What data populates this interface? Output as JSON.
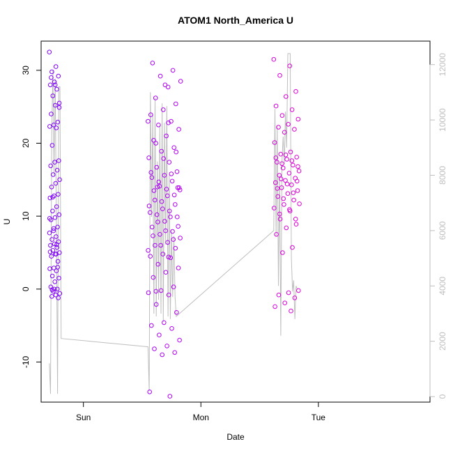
{
  "chart_data": {
    "type": "scatter",
    "title": "ATOM1 North_America U",
    "xlabel": "Date",
    "ylabel": "U",
    "x_ticks": [
      {
        "label": "Sun",
        "day": 1.0
      },
      {
        "label": "Mon",
        "day": 2.0
      },
      {
        "label": "Tue",
        "day": 3.0
      }
    ],
    "xlim_days": [
      0.64,
      3.95
    ],
    "y_ticks": [
      -10,
      0,
      10,
      20,
      30
    ],
    "ylim": [
      -15.5,
      34.0
    ],
    "y2_ticks": [
      0,
      2000,
      4000,
      6000,
      8000,
      10000,
      12000
    ],
    "y2lim": [
      -200,
      12850
    ],
    "grid": false,
    "legend": "none",
    "colors": {
      "early": "#7a00ff",
      "mid": "#cc00ee",
      "late": "#ff0099",
      "secondary_line": "#bebebe"
    },
    "series": [
      {
        "kind": "points",
        "day_range": [
          0.71,
          0.8
        ],
        "values": [
          32.5,
          30.5,
          29.8,
          29.2,
          28.4,
          28.0,
          27.4,
          26.5,
          25.5,
          25.2,
          24.0,
          22.9,
          22.5,
          22.3,
          22.1,
          19.7,
          17.6,
          17.4,
          16.9,
          16.3,
          15.7,
          15.0,
          14.5,
          14.0,
          13.0,
          12.8,
          12.5,
          11.3,
          10.7,
          10.2,
          9.8,
          9.5,
          8.5,
          8.0,
          7.7,
          7.2,
          6.8,
          6.5,
          6.2,
          6.0,
          5.7,
          5.3,
          5.0,
          4.8,
          4.5,
          3.8,
          2.9,
          2.8,
          2.5,
          1.8,
          1.5,
          1.0,
          0.3,
          0.0,
          -0.3,
          -0.6,
          -0.8,
          -1.0,
          -1.2,
          0.0,
          5.1,
          6.1,
          12.6,
          24.9,
          28.0,
          29.0,
          3.0,
          8.3,
          9.7,
          4.8,
          -0.1
        ]
      },
      {
        "kind": "points",
        "day_range": [
          1.55,
          1.83
        ],
        "values": [
          23.0,
          22.8,
          20.0,
          18.8,
          17.9,
          16.0,
          15.8,
          14.7,
          13.9,
          13.7,
          13.5,
          12.9,
          12.0,
          11.4,
          10.7,
          10.2,
          9.9,
          9.3,
          8.5,
          7.9,
          7.5,
          7.0,
          6.4,
          6.0,
          5.6,
          4.8,
          4.5,
          4.3,
          3.4,
          2.9,
          2.3,
          1.6,
          0.3,
          -0.2,
          -0.5,
          -0.8,
          -2.1,
          -3.2,
          -4.6,
          -5.0,
          -5.4,
          -6.3,
          -7.0,
          -7.8,
          -8.2,
          -8.7,
          -9.0,
          -14.1,
          -14.7,
          14.0,
          13.9,
          28.0,
          31.0,
          30.0,
          29.2,
          28.5,
          27.7,
          26.2,
          25.4,
          24.6,
          23.9,
          23.0,
          22.5,
          21.9,
          21.0,
          20.4,
          19.4,
          18.9,
          18.0,
          17.4,
          16.7,
          16.1,
          15.6,
          15.3,
          14.8,
          14.1,
          13.6,
          12.8,
          12.2,
          11.6,
          11.0,
          10.5,
          9.9,
          9.2,
          8.6,
          8.0,
          7.3,
          6.8,
          6.0,
          5.3,
          4.4,
          -0.3
        ]
      },
      {
        "kind": "points",
        "day_range": [
          2.62,
          2.84
        ],
        "values": [
          31.5,
          30.6,
          29.3,
          27.1,
          26.4,
          25.1,
          24.6,
          23.8,
          23.3,
          22.6,
          22.2,
          21.9,
          21.5,
          20.1,
          18.8,
          18.5,
          18.1,
          17.8,
          17.4,
          17.0,
          16.6,
          16.2,
          15.9,
          15.6,
          15.2,
          14.9,
          14.6,
          14.3,
          13.9,
          13.5,
          13.1,
          12.7,
          12.2,
          11.6,
          11.1,
          10.7,
          9.6,
          8.9,
          8.4,
          7.5,
          5.7,
          5.0,
          -0.2,
          -0.5,
          -0.8,
          -1.2,
          -1.9,
          -2.4,
          -3.0,
          15.1,
          14.8,
          14.4,
          13.8,
          13.2,
          12.4,
          11.7,
          10.9,
          10.3,
          9.6,
          18.4,
          18.0,
          17.6,
          17.2,
          16.8
        ]
      }
    ],
    "secondary_line": {
      "axis": "right",
      "points": [
        [
          0.71,
          1200
        ],
        [
          0.72,
          100
        ],
        [
          0.73,
          9500
        ],
        [
          0.74,
          11800
        ],
        [
          0.75,
          8000
        ],
        [
          0.76,
          11500
        ],
        [
          0.77,
          6200
        ],
        [
          0.78,
          100
        ],
        [
          0.79,
          11200
        ],
        [
          0.8,
          11200
        ],
        [
          0.81,
          2100
        ],
        [
          1.55,
          1800
        ],
        [
          1.56,
          200
        ],
        [
          1.57,
          11000
        ],
        [
          1.58,
          6500
        ],
        [
          1.59,
          10200
        ],
        [
          1.6,
          3000
        ],
        [
          1.61,
          10800
        ],
        [
          1.62,
          2900
        ],
        [
          1.63,
          8500
        ],
        [
          1.64,
          3500
        ],
        [
          1.65,
          9800
        ],
        [
          1.66,
          3000
        ],
        [
          1.67,
          10600
        ],
        [
          1.68,
          2700
        ],
        [
          1.69,
          9900
        ],
        [
          1.7,
          5500
        ],
        [
          1.71,
          10500
        ],
        [
          1.72,
          2900
        ],
        [
          1.73,
          8000
        ],
        [
          1.74,
          2800
        ],
        [
          1.75,
          6000
        ],
        [
          1.76,
          3600
        ],
        [
          1.77,
          5800
        ],
        [
          1.78,
          3600
        ],
        [
          1.79,
          2900
        ],
        [
          2.62,
          6000
        ],
        [
          2.63,
          10400
        ],
        [
          2.64,
          5800
        ],
        [
          2.65,
          9800
        ],
        [
          2.66,
          4000
        ],
        [
          2.67,
          8000
        ],
        [
          2.68,
          2200
        ],
        [
          2.69,
          8500
        ],
        [
          2.7,
          9400
        ],
        [
          2.71,
          8400
        ],
        [
          2.72,
          10300
        ],
        [
          2.73,
          9000
        ],
        [
          2.74,
          12400
        ],
        [
          2.75,
          12400
        ],
        [
          2.76,
          12400
        ],
        [
          2.77,
          5000
        ],
        [
          2.78,
          3800
        ],
        [
          2.79,
          4200
        ],
        [
          2.8,
          2800
        ],
        [
          2.81,
          4000
        ],
        [
          2.82,
          3900
        ]
      ]
    }
  }
}
